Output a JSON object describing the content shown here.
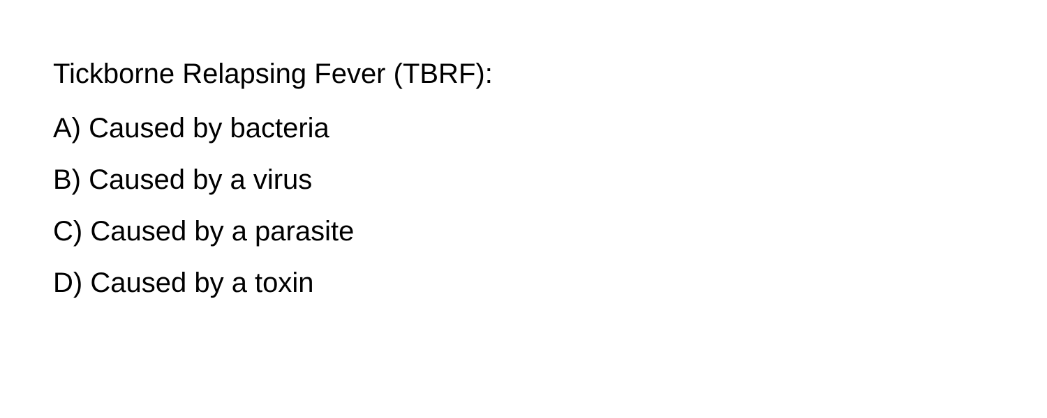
{
  "text_color": "#000000",
  "background_color": "#ffffff",
  "font_size_pt": 30,
  "question": "Tickborne Relapsing Fever (TBRF):",
  "options": [
    {
      "letter": "A)",
      "text": "Caused by bacteria"
    },
    {
      "letter": "B)",
      "text": "Caused by a virus"
    },
    {
      "letter": "C)",
      "text": "Caused by a parasite"
    },
    {
      "letter": "D)",
      "text": "Caused by a toxin"
    }
  ]
}
